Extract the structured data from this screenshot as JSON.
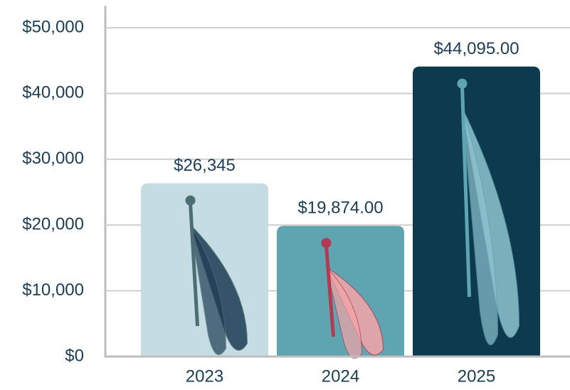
{
  "chart_data": {
    "type": "bar",
    "categories": [
      "2023",
      "2024",
      "2025"
    ],
    "values": [
      26345,
      19874,
      44095
    ],
    "value_labels": [
      "$26,345",
      "$19,874.00",
      "$44,095.00"
    ],
    "colors": [
      "#c4dce2",
      "#5fa4b1",
      "#0e3a4f"
    ],
    "ylim": [
      0,
      50000
    ],
    "yticks": [
      {
        "value": 0,
        "label": "$0"
      },
      {
        "value": 10000,
        "label": "$10,000"
      },
      {
        "value": 20000,
        "label": "$20,000"
      },
      {
        "value": 30000,
        "label": "$30,000"
      },
      {
        "value": 40000,
        "label": "$40,000"
      },
      {
        "value": 50000,
        "label": "$50,000"
      }
    ],
    "grid": true
  }
}
